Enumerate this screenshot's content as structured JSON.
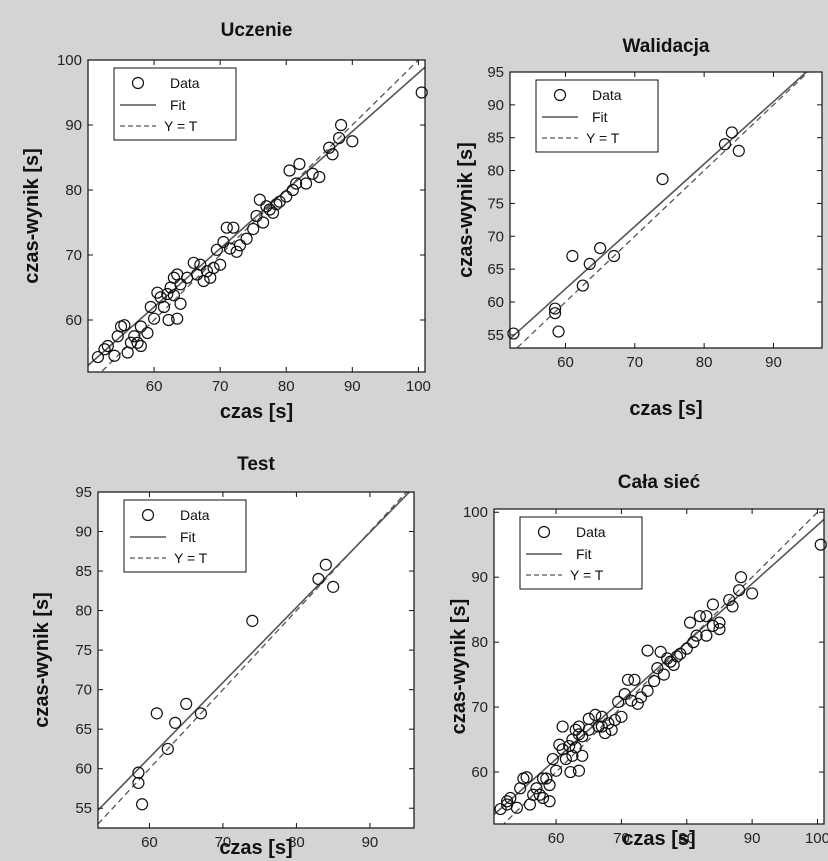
{
  "chart_data": [
    {
      "type": "scatter",
      "title": "Uczenie",
      "xlabel": "czas [s]",
      "ylabel": "czas-wynik [s]",
      "xlim": [
        50,
        101
      ],
      "ylim": [
        52,
        100
      ],
      "xticks": [
        60,
        70,
        80,
        90,
        100
      ],
      "yticks": [
        60,
        70,
        80,
        90,
        100
      ],
      "legend_position": "top-left",
      "legend": [
        "Data",
        "Fit",
        "Y = T"
      ],
      "fit": {
        "slope": 0.9,
        "intercept": 8.0
      },
      "points": [
        [
          51.5,
          54.3
        ],
        [
          52.5,
          55.5
        ],
        [
          53,
          56
        ],
        [
          54,
          54.5
        ],
        [
          54.5,
          57.5
        ],
        [
          55,
          59
        ],
        [
          55.5,
          59.2
        ],
        [
          56,
          55
        ],
        [
          56.5,
          56.5
        ],
        [
          57,
          57.5
        ],
        [
          57.5,
          56.5
        ],
        [
          58,
          59
        ],
        [
          58,
          56
        ],
        [
          59,
          58
        ],
        [
          59.5,
          62
        ],
        [
          60,
          60.2
        ],
        [
          60.5,
          64.2
        ],
        [
          61,
          63.5
        ],
        [
          61.5,
          62
        ],
        [
          62,
          64
        ],
        [
          62.2,
          60
        ],
        [
          62.5,
          65
        ],
        [
          63,
          66.5
        ],
        [
          63,
          63.8
        ],
        [
          63.5,
          67
        ],
        [
          63.5,
          60.2
        ],
        [
          64,
          65.5
        ],
        [
          64,
          62.5
        ],
        [
          65,
          66.5
        ],
        [
          66,
          68.8
        ],
        [
          66.5,
          67
        ],
        [
          67,
          68.5
        ],
        [
          67.5,
          66
        ],
        [
          68,
          67.5
        ],
        [
          68.5,
          66.5
        ],
        [
          69,
          68
        ],
        [
          69.5,
          70.8
        ],
        [
          70,
          68.5
        ],
        [
          70.5,
          72
        ],
        [
          71,
          74.2
        ],
        [
          71.5,
          71
        ],
        [
          72,
          74.2
        ],
        [
          72.5,
          70.5
        ],
        [
          73,
          71.5
        ],
        [
          74,
          72.5
        ],
        [
          75,
          74
        ],
        [
          75.5,
          76
        ],
        [
          76,
          78.5
        ],
        [
          76.5,
          75
        ],
        [
          77,
          77.5
        ],
        [
          77.5,
          77
        ],
        [
          78,
          76.5
        ],
        [
          78.5,
          77.8
        ],
        [
          79,
          78.2
        ],
        [
          80,
          79
        ],
        [
          80.5,
          83
        ],
        [
          81,
          80
        ],
        [
          81.5,
          81
        ],
        [
          82,
          84
        ],
        [
          83,
          81
        ],
        [
          84,
          82.5
        ],
        [
          85,
          82
        ],
        [
          86.5,
          86.5
        ],
        [
          87,
          85.5
        ],
        [
          88,
          88
        ],
        [
          88.3,
          90
        ],
        [
          90,
          87.5
        ],
        [
          100.5,
          95
        ]
      ]
    },
    {
      "type": "scatter",
      "title": "Walidacja",
      "xlabel": "czas [s]",
      "ylabel": "czas-wynik [s]",
      "xlim": [
        52,
        97
      ],
      "ylim": [
        53,
        95
      ],
      "xticks": [
        60,
        70,
        80,
        90
      ],
      "yticks": [
        60,
        65,
        70,
        75,
        80,
        85,
        90,
        95
      ],
      "extra_ytick": {
        "value": 55,
        "label": "55"
      },
      "legend_position": "top-left",
      "legend": [
        "Data",
        "Fit",
        "Y = T"
      ],
      "fit": {
        "slope": 0.95,
        "intercept": 5.0
      },
      "points": [
        [
          52.5,
          55.2
        ],
        [
          58.5,
          59
        ],
        [
          58.5,
          58.3
        ],
        [
          59,
          55.5
        ],
        [
          61,
          67
        ],
        [
          62.5,
          62.5
        ],
        [
          63.5,
          65.8
        ],
        [
          65,
          68.2
        ],
        [
          67,
          67
        ],
        [
          74,
          78.7
        ],
        [
          83,
          84
        ],
        [
          84,
          85.8
        ],
        [
          85,
          83
        ]
      ]
    },
    {
      "type": "scatter",
      "title": "Test",
      "xlabel": "czas [s]",
      "ylabel": "czas-wynik [s]",
      "xlim": [
        53,
        96
      ],
      "ylim": [
        52.5,
        95
      ],
      "xticks": [
        60,
        70,
        80,
        90
      ],
      "yticks": [
        55,
        60,
        65,
        70,
        75,
        80,
        85,
        90,
        95
      ],
      "legend_position": "top-left",
      "legend": [
        "Data",
        "Fit",
        "Y = T"
      ],
      "fit": {
        "slope": 0.95,
        "intercept": 4.4
      },
      "points": [
        [
          58.5,
          59.5
        ],
        [
          58.5,
          58.2
        ],
        [
          59,
          55.5
        ],
        [
          61,
          67
        ],
        [
          62.5,
          62.5
        ],
        [
          63.5,
          65.8
        ],
        [
          65,
          68.2
        ],
        [
          67,
          67
        ],
        [
          74,
          78.7
        ],
        [
          83,
          84
        ],
        [
          84,
          85.8
        ],
        [
          85,
          83
        ]
      ]
    },
    {
      "type": "scatter",
      "title": "Cała sieć",
      "xlabel": "czas [s]",
      "ylabel": "czas-wynik [s]",
      "xlim": [
        50.5,
        101
      ],
      "ylim": [
        52,
        100.5
      ],
      "xticks": [
        60,
        70,
        80,
        90,
        100
      ],
      "yticks": [
        60,
        70,
        80,
        90,
        100
      ],
      "legend_position": "top-left",
      "legend": [
        "Data",
        "Fit",
        "Y = T"
      ],
      "fit": {
        "slope": 0.9,
        "intercept": 8.0
      },
      "points": [
        [
          51.5,
          54.3
        ],
        [
          52.5,
          55.5
        ],
        [
          52.5,
          55
        ],
        [
          53,
          56
        ],
        [
          54,
          54.5
        ],
        [
          54.5,
          57.5
        ],
        [
          55,
          59
        ],
        [
          55.5,
          59.2
        ],
        [
          56,
          55
        ],
        [
          56.5,
          56.5
        ],
        [
          57,
          57.5
        ],
        [
          57.5,
          56.5
        ],
        [
          58,
          59
        ],
        [
          58,
          56
        ],
        [
          58.5,
          59
        ],
        [
          59,
          58
        ],
        [
          59,
          55.5
        ],
        [
          59.5,
          62
        ],
        [
          60,
          60.2
        ],
        [
          60.5,
          64.2
        ],
        [
          61,
          63.5
        ],
        [
          61,
          67
        ],
        [
          61.5,
          62
        ],
        [
          62,
          64
        ],
        [
          62.2,
          60
        ],
        [
          62.5,
          65
        ],
        [
          62.5,
          62.5
        ],
        [
          63,
          66.5
        ],
        [
          63,
          63.8
        ],
        [
          63.5,
          67
        ],
        [
          63.5,
          60.2
        ],
        [
          63.5,
          65.8
        ],
        [
          64,
          65.5
        ],
        [
          64,
          62.5
        ],
        [
          65,
          66.5
        ],
        [
          65,
          68.2
        ],
        [
          66,
          68.8
        ],
        [
          66.5,
          67
        ],
        [
          67,
          68.5
        ],
        [
          67,
          67
        ],
        [
          67.5,
          66
        ],
        [
          68,
          67.5
        ],
        [
          68.5,
          66.5
        ],
        [
          69,
          68
        ],
        [
          69.5,
          70.8
        ],
        [
          70,
          68.5
        ],
        [
          70.5,
          72
        ],
        [
          71,
          74.2
        ],
        [
          71.5,
          71
        ],
        [
          72,
          74.2
        ],
        [
          72.5,
          70.5
        ],
        [
          73,
          71.5
        ],
        [
          74,
          72.5
        ],
        [
          74,
          78.7
        ],
        [
          75,
          74
        ],
        [
          75.5,
          76
        ],
        [
          76,
          78.5
        ],
        [
          76.5,
          75
        ],
        [
          77,
          77.5
        ],
        [
          77.5,
          77
        ],
        [
          78,
          76.5
        ],
        [
          78.5,
          77.8
        ],
        [
          79,
          78.2
        ],
        [
          80,
          79
        ],
        [
          80.5,
          83
        ],
        [
          81,
          80
        ],
        [
          81.5,
          81
        ],
        [
          82,
          84
        ],
        [
          83,
          81
        ],
        [
          83,
          84
        ],
        [
          84,
          82.5
        ],
        [
          84,
          85.8
        ],
        [
          85,
          82
        ],
        [
          85,
          83
        ],
        [
          86.5,
          86.5
        ],
        [
          87,
          85.5
        ],
        [
          88,
          88
        ],
        [
          88.3,
          90
        ],
        [
          90,
          87.5
        ],
        [
          100.5,
          95
        ]
      ]
    }
  ]
}
